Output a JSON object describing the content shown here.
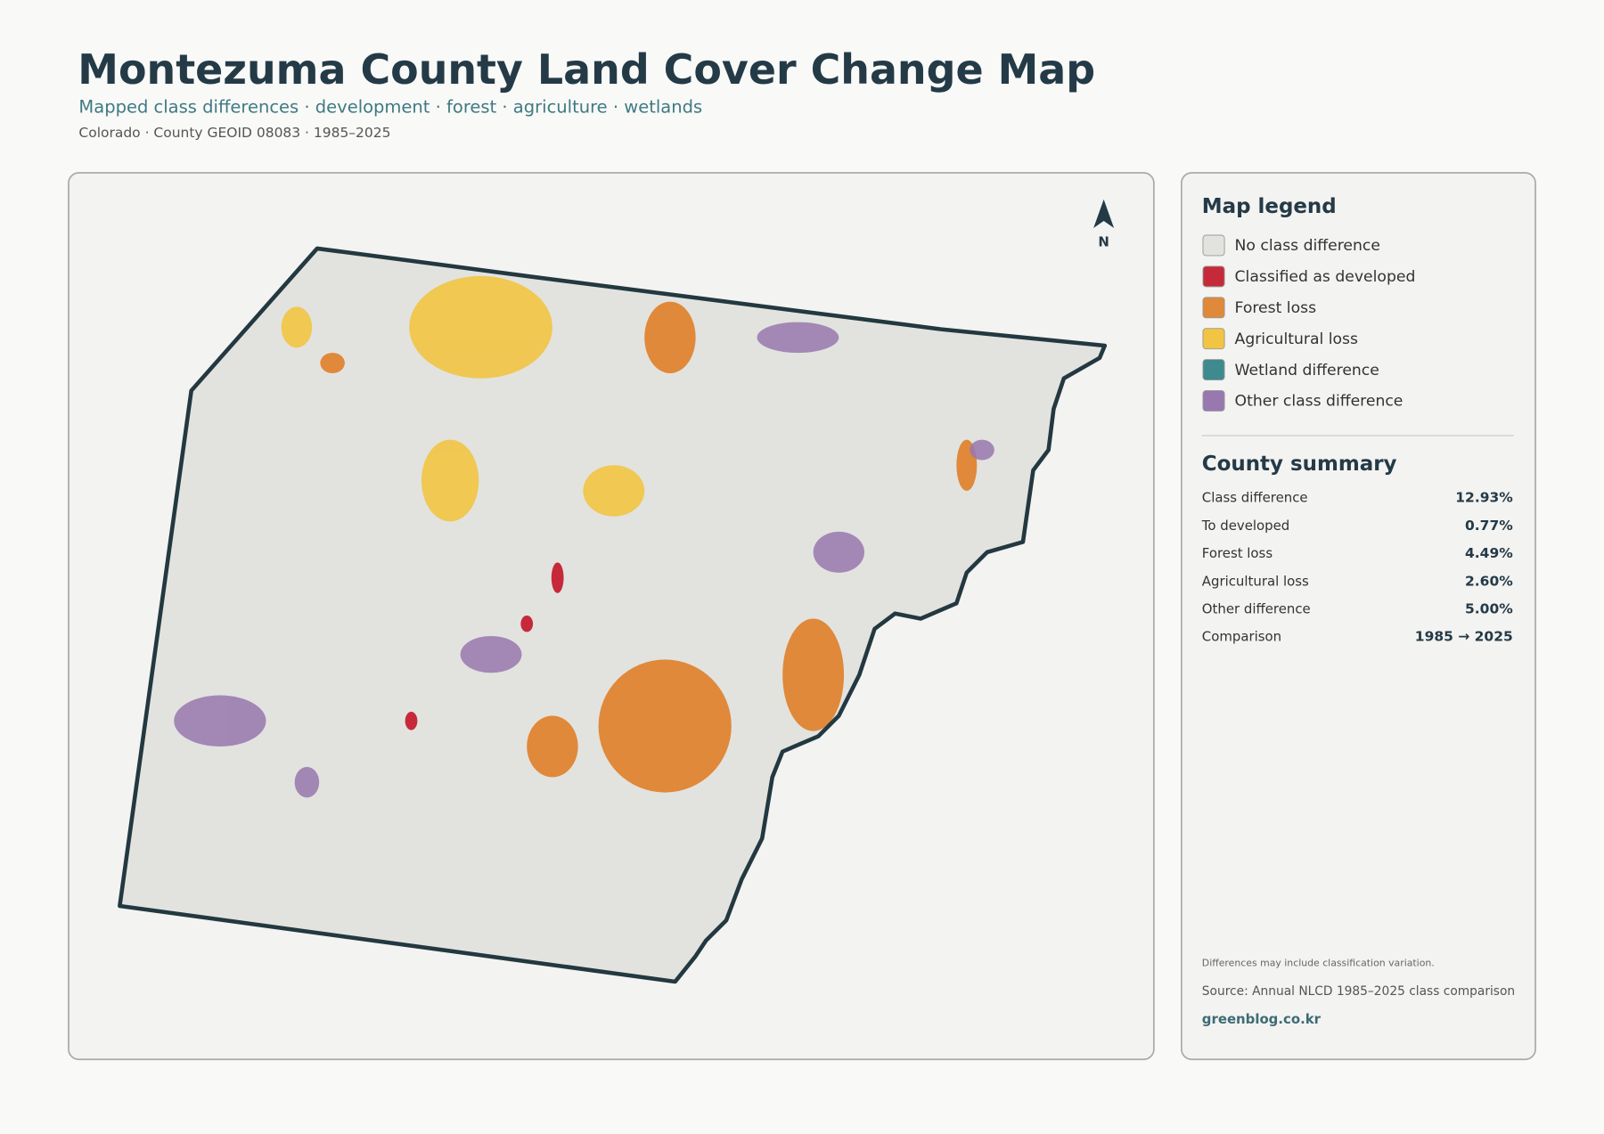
{
  "header": {
    "title": "Montezuma County Land Cover Change Map",
    "subtitle": "Mapped class differences · development · forest · agriculture · wetlands",
    "meta": "Colorado · County GEOID 08083 · 1985–2025"
  },
  "map": {
    "north_label": "N"
  },
  "legend": {
    "title": "Map legend",
    "items": [
      {
        "label": "No class difference",
        "color": "#e2e3df"
      },
      {
        "label": "Classified as developed",
        "color": "#c62a3a"
      },
      {
        "label": "Forest loss",
        "color": "#e0893a"
      },
      {
        "label": "Agricultural loss",
        "color": "#f2c443"
      },
      {
        "label": "Wetland difference",
        "color": "#3e8a8f"
      },
      {
        "label": "Other class difference",
        "color": "#9878ae"
      }
    ]
  },
  "summary": {
    "title": "County summary",
    "rows": [
      [
        "Class difference",
        "12.93%"
      ],
      [
        "To developed",
        "0.77%"
      ],
      [
        "Forest loss",
        "4.49%"
      ],
      [
        "Agricultural loss",
        "2.60%"
      ],
      [
        "Other difference",
        "5.00%"
      ],
      [
        "Comparison",
        "1985 → 2025"
      ]
    ]
  },
  "footer": {
    "note": "Differences may include classification variation.",
    "source": "Source: Annual NLCD 1985–2025 class comparison",
    "site": "greenblog.co.kr"
  }
}
